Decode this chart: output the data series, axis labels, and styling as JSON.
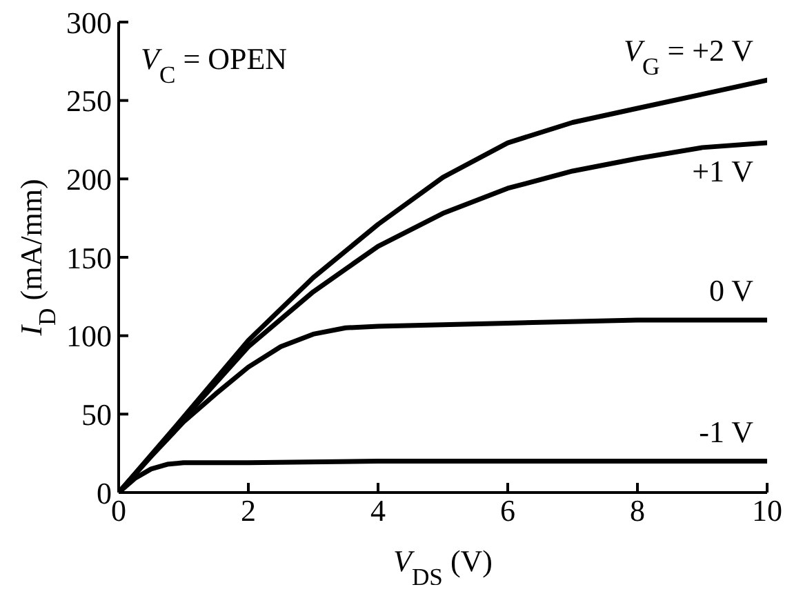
{
  "chart_data": {
    "type": "line",
    "xlabel": "V$_{DS}$ (V)",
    "ylabel": "I$_{D}$ (mA/mm)",
    "xlim": [
      0,
      10
    ],
    "xticks": [
      0,
      2,
      4,
      6,
      8,
      10
    ],
    "ylim": [
      0,
      300
    ],
    "yticks": [
      0,
      50,
      100,
      150,
      200,
      250,
      300
    ],
    "marker": "none",
    "line_style": "solid",
    "annotations": [
      "V$_{C}$ = OPEN"
    ],
    "series": [
      {
        "name": "V$_{G}$ = +2 V",
        "color": "#000000",
        "x": [
          0,
          1,
          2,
          3,
          4,
          5,
          6,
          7,
          8,
          9,
          10
        ],
        "values": [
          0,
          48,
          97,
          137,
          171,
          201,
          223,
          236,
          245,
          254,
          263
        ]
      },
      {
        "name": "+1 V",
        "color": "#000000",
        "x": [
          0,
          1,
          2,
          3,
          4,
          5,
          6,
          7,
          8,
          9,
          10
        ],
        "values": [
          0,
          47,
          93,
          128,
          157,
          178,
          194,
          205,
          213,
          220,
          223
        ]
      },
      {
        "name": "0 V",
        "color": "#000000",
        "x": [
          0,
          0.5,
          1,
          1.5,
          2,
          2.5,
          3,
          3.5,
          4,
          5,
          6,
          8,
          10
        ],
        "values": [
          0,
          23,
          45,
          63,
          80,
          93,
          101,
          105,
          106,
          107,
          108,
          110,
          110
        ]
      },
      {
        "name": "-1 V",
        "color": "#000000",
        "x": [
          0,
          0.25,
          0.5,
          0.75,
          1,
          2,
          4,
          6,
          8,
          10
        ],
        "values": [
          0,
          9,
          15,
          18,
          19,
          19,
          20,
          20,
          20,
          20
        ]
      }
    ]
  }
}
